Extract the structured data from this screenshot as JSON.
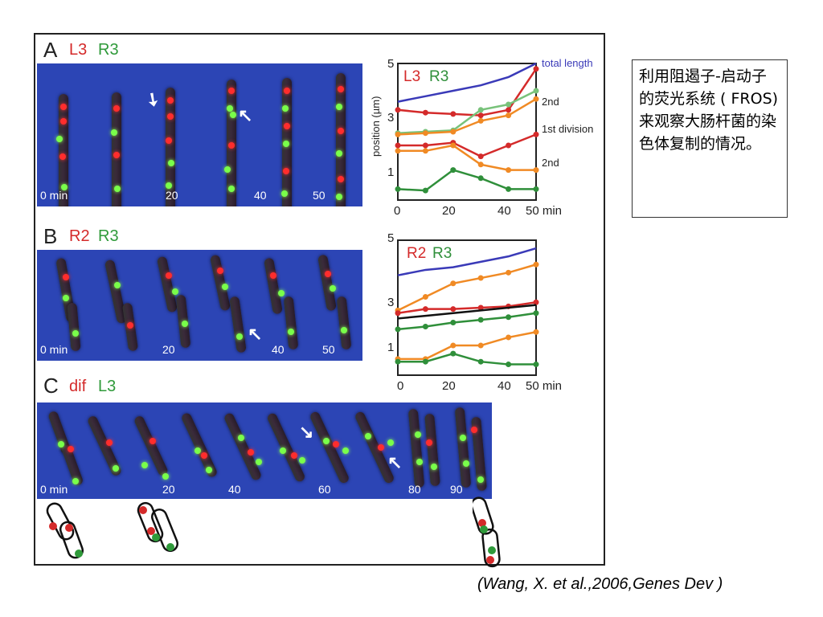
{
  "panels": [
    {
      "letter": "A",
      "label1": "L3",
      "label2": "R3",
      "time_labels": [
        "0 min",
        "20",
        "40",
        "50"
      ],
      "plot": {
        "legend1": "L3",
        "legend2": "R3",
        "ylabel": "position (µm)",
        "y_ticks": [
          "1",
          "3",
          "5"
        ],
        "x_ticks": [
          "0",
          "20",
          "40",
          "50 min"
        ],
        "annotations": [
          "total length",
          "2nd",
          "1st division",
          "2nd"
        ]
      }
    },
    {
      "letter": "B",
      "label1": "R2",
      "label2": "R3",
      "time_labels": [
        "0 min",
        "20",
        "40",
        "50"
      ],
      "plot": {
        "legend1": "R2",
        "legend2": "R3",
        "y_ticks": [
          "1",
          "3",
          "5"
        ],
        "x_ticks": [
          "0",
          "20",
          "40",
          "50 min"
        ]
      }
    },
    {
      "letter": "C",
      "label1": "dif",
      "label2": "L3",
      "time_labels": [
        "0 min",
        "20",
        "40",
        "60",
        "80",
        "90"
      ]
    }
  ],
  "colors": {
    "total_length": "#3a3ab8",
    "red_series": "#d42a2a",
    "green_series": "#2f8f3a",
    "orange_series": "#f08a24",
    "light_green_series": "#78c27a",
    "division_series": "#111111",
    "micrograph_bg": "#2c45b5"
  },
  "chart_data": [
    {
      "type": "line",
      "panel": "A",
      "x": [
        0,
        10,
        20,
        30,
        40,
        50
      ],
      "xlim": [
        0,
        50
      ],
      "ylim": [
        0,
        5
      ],
      "xlabel": "min",
      "ylabel": "position (µm)",
      "series": [
        {
          "name": "total length",
          "values": [
            3.6,
            3.8,
            4.0,
            4.2,
            4.5,
            5.0
          ]
        },
        {
          "values": [
            3.3,
            3.2,
            3.15,
            3.1,
            3.3,
            4.8
          ]
        },
        {
          "values": [
            2.45,
            2.5,
            2.55,
            3.3,
            3.5,
            4.0
          ]
        },
        {
          "values": [
            2.4,
            2.45,
            2.5,
            2.9,
            3.1,
            3.7
          ]
        },
        {
          "values": [
            2.0,
            2.0,
            2.1,
            1.6,
            2.0,
            2.4
          ]
        },
        {
          "values": [
            1.8,
            1.8,
            2.0,
            1.3,
            1.1,
            1.1
          ]
        },
        {
          "values": [
            0.4,
            0.35,
            1.1,
            0.8,
            0.4,
            0.4
          ]
        }
      ]
    },
    {
      "type": "line",
      "panel": "B",
      "x": [
        0,
        10,
        20,
        30,
        40,
        50
      ],
      "xlim": [
        0,
        50
      ],
      "ylim": [
        0,
        5
      ],
      "xlabel": "min",
      "series": [
        {
          "values": [
            3.7,
            3.9,
            4.0,
            4.2,
            4.4,
            4.7
          ]
        },
        {
          "values": [
            2.4,
            2.9,
            3.4,
            3.6,
            3.8,
            4.1
          ]
        },
        {
          "values": [
            2.3,
            2.45,
            2.45,
            2.5,
            2.55,
            2.7
          ]
        },
        {
          "values": [
            2.1,
            2.2,
            2.3,
            2.4,
            2.5,
            2.6
          ]
        },
        {
          "values": [
            1.7,
            1.8,
            1.95,
            2.05,
            2.15,
            2.3
          ]
        },
        {
          "values": [
            0.6,
            0.6,
            1.1,
            1.1,
            1.4,
            1.6
          ]
        },
        {
          "values": [
            0.5,
            0.5,
            0.8,
            0.5,
            0.4,
            0.4
          ]
        }
      ]
    }
  ],
  "caption": "利用阻遏子-启动子的荧光系统 ( FROS)来观察大肠杆菌的染色体复制的情况。",
  "citation": "(Wang, X. et al.,2006,Genes Dev )"
}
